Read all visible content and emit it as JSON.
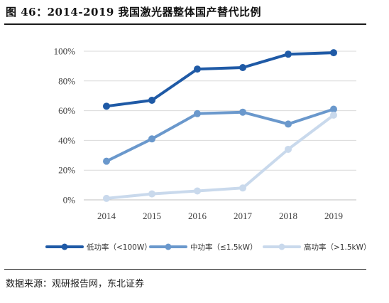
{
  "figure": {
    "title": "图 46：2014-2019 我国激光器整体国产替代比例",
    "source": "数据来源：观研报告网，东北证券"
  },
  "chart_data": {
    "type": "line",
    "x": [
      "2014",
      "2015",
      "2016",
      "2017",
      "2018",
      "2019"
    ],
    "ylim": [
      0,
      100
    ],
    "yticks": [
      "0%",
      "20%",
      "40%",
      "60%",
      "80%",
      "100%"
    ],
    "grid": true,
    "legend_position": "bottom",
    "series": [
      {
        "name": "低功率（<100W）",
        "color": "#1f5aa6",
        "values": [
          63,
          67,
          88,
          89,
          98,
          99
        ]
      },
      {
        "name": "中功率（≤1.5kW）",
        "color": "#6a98cc",
        "values": [
          26,
          41,
          58,
          59,
          51,
          61
        ]
      },
      {
        "name": "高功率（>1.5kW）",
        "color": "#c9d9ec",
        "values": [
          1,
          4,
          6,
          8,
          34,
          57
        ]
      }
    ]
  }
}
